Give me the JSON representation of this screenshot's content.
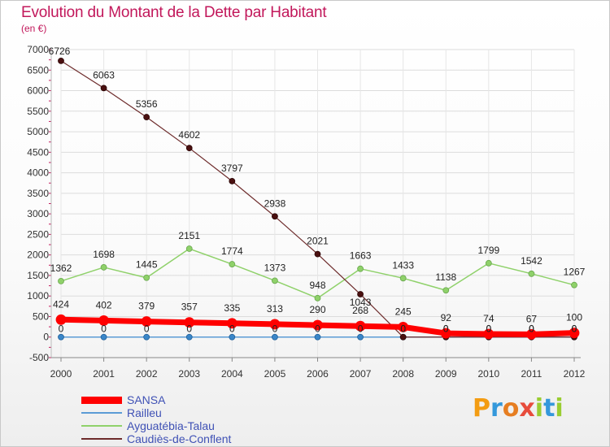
{
  "title": "Evolution du Montant de la Dette par Habitant",
  "subtitle": "(en €)",
  "logo": {
    "letters": [
      "P",
      "r",
      "o",
      "x",
      "i",
      "t",
      "i"
    ],
    "colors": [
      "#f39c12",
      "#3498db",
      "#e67e22",
      "#e74c3c",
      "#9acd32",
      "#3498db",
      "#9acd32"
    ]
  },
  "chart_data": {
    "type": "line",
    "title": "Evolution du Montant de la Dette par Habitant",
    "ylabel": "(en €)",
    "xlabel": "",
    "x": [
      "2000",
      "2001",
      "2002",
      "2003",
      "2004",
      "2005",
      "2006",
      "2007",
      "2008",
      "2009",
      "2010",
      "2011",
      "2012"
    ],
    "ylim": [
      -500,
      7000
    ],
    "yticks": [
      -500,
      0,
      500,
      1000,
      1500,
      2000,
      2500,
      3000,
      3500,
      4000,
      4500,
      5000,
      5500,
      6000,
      6500,
      7000
    ],
    "grid": true,
    "legend_position": "bottom-left",
    "series": [
      {
        "name": "SANSA",
        "color": "#ff0000",
        "values": [
          424,
          402,
          379,
          357,
          335,
          313,
          290,
          268,
          245,
          92,
          74,
          67,
          100
        ],
        "labels": [
          "424",
          "402",
          "379",
          "357",
          "335",
          "313",
          "290",
          "268",
          "245",
          "92",
          "74",
          "67",
          "100"
        ]
      },
      {
        "name": "Railleu",
        "color": "#5b9bd5",
        "values": [
          0,
          0,
          0,
          0,
          0,
          0,
          0,
          0,
          0,
          0,
          0,
          0,
          0
        ],
        "labels": [
          "0",
          "0",
          "0",
          "0",
          "0",
          "0",
          "0",
          "0",
          "0",
          "0",
          "0",
          "0",
          "0"
        ]
      },
      {
        "name": "Ayguatébia-Talau",
        "color": "#8fd16a",
        "values": [
          1362,
          1698,
          1445,
          2151,
          1774,
          1373,
          948,
          1663,
          1433,
          1138,
          1799,
          1542,
          1267
        ],
        "labels": [
          "1362",
          "1698",
          "1445",
          "2151",
          "1774",
          "1373",
          "948",
          "1663",
          "1433",
          "1138",
          "1799",
          "1542",
          "1267"
        ]
      },
      {
        "name": "Caudiès-de-Conflent",
        "color": "#6d2b2b",
        "values": [
          6726,
          6063,
          5356,
          4602,
          3797,
          2938,
          2021,
          1043,
          0,
          0,
          0,
          0,
          0
        ],
        "labels": [
          "6726",
          "6063",
          "5356",
          "4602",
          "3797",
          "2938",
          "2021",
          "1043",
          "0",
          "0",
          "0",
          "0",
          "0"
        ]
      }
    ]
  }
}
